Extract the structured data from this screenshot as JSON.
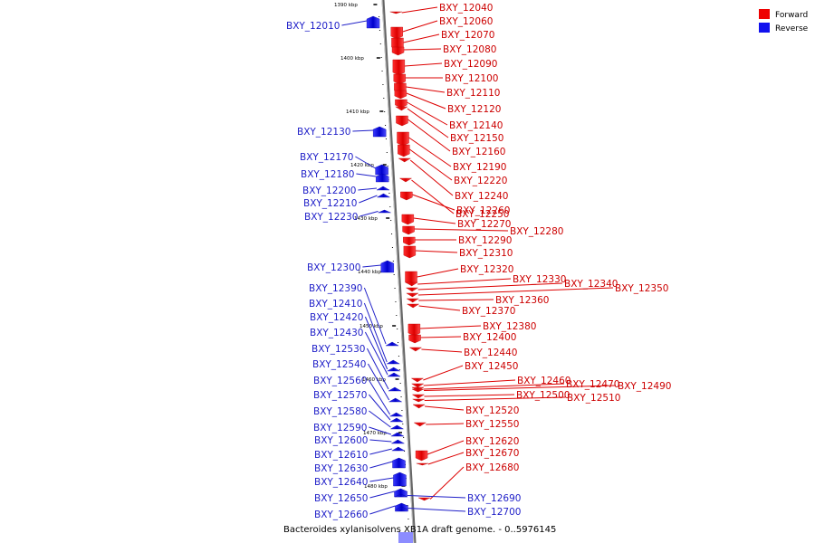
{
  "caption": "Bacteroides xylanisolvens XB1A draft genome. - 0..5976145",
  "legend": [
    {
      "label": "Forward",
      "color": "#ee0000"
    },
    {
      "label": "Reverse",
      "color": "#1111ee"
    }
  ],
  "ticks": [
    "1390 kbp",
    "1400 kbp",
    "1410 kbp",
    "1420 kbp",
    "1430 kbp",
    "1440 kbp",
    "1450 kbp",
    "1460 kbp",
    "1470 kbp",
    "1480 kbp"
  ],
  "forward_genes": [
    "BXY_12040",
    "BXY_12060",
    "BXY_12070",
    "BXY_12080",
    "BXY_12090",
    "BXY_12100",
    "BXY_12110",
    "BXY_12120",
    "BXY_12140",
    "BXY_12150",
    "BXY_12160",
    "BXY_12190",
    "BXY_12220",
    "BXY_12240",
    "BXY_12250",
    "BXY_12260",
    "BXY_12270",
    "BXY_12280",
    "BXY_12290",
    "BXY_12310",
    "BXY_12320",
    "BXY_12330",
    "BXY_12340",
    "BXY_12350",
    "BXY_12360",
    "BXY_12370",
    "BXY_12380",
    "BXY_12400",
    "BXY_12440",
    "BXY_12450",
    "BXY_12460",
    "BXY_12470",
    "BXY_12490",
    "BXY_12500",
    "BXY_12510",
    "BXY_12520",
    "BXY_12550",
    "BXY_12620",
    "BXY_12670",
    "BXY_12680"
  ],
  "reverse_genes": [
    "BXY_12010",
    "BXY_12130",
    "BXY_12170",
    "BXY_12180",
    "BXY_12200",
    "BXY_12210",
    "BXY_12230",
    "BXY_12300",
    "BXY_12390",
    "BXY_12410",
    "BXY_12420",
    "BXY_12430",
    "BXY_12530",
    "BXY_12540",
    "BXY_12560",
    "BXY_12570",
    "BXY_12580",
    "BXY_12590",
    "BXY_12600",
    "BXY_12610",
    "BXY_12630",
    "BXY_12640",
    "BXY_12650",
    "BXY_12660",
    "BXY_12690",
    "BXY_12700"
  ]
}
